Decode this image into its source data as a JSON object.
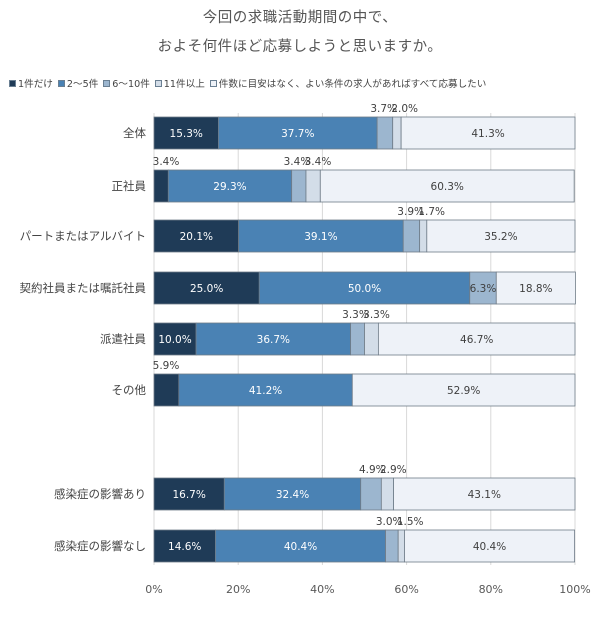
{
  "title_line1": "今回の求職活動期間の中で、",
  "title_line2": "およそ何件ほど応募しようと思いますか。",
  "chart_data": {
    "type": "bar",
    "orientation": "horizontal",
    "stacked": true,
    "normalized_percent": true,
    "categories": [
      "全体",
      "正社員",
      "パートまたはアルバイト",
      "契約社員または嘱託社員",
      "派遣社員",
      "その他",
      "感染症の影響あり",
      "感染症の影響なし"
    ],
    "series": [
      {
        "name": "1件だけ",
        "color": "#1f3b57",
        "values": [
          15.3,
          3.4,
          20.1,
          25.0,
          10.0,
          5.9,
          16.7,
          14.6
        ]
      },
      {
        "name": "2～5件",
        "color": "#4a82b4",
        "values": [
          37.7,
          29.3,
          39.1,
          50.0,
          36.7,
          41.2,
          32.4,
          40.4
        ]
      },
      {
        "name": "6～10件",
        "color": "#9cb6cf",
        "values": [
          3.7,
          3.4,
          3.9,
          6.3,
          3.3,
          0,
          4.9,
          3.0
        ]
      },
      {
        "name": "11件以上",
        "color": "#d3dde8",
        "values": [
          2.0,
          3.4,
          1.7,
          0,
          3.3,
          0,
          2.9,
          1.5
        ]
      },
      {
        "name": "件数に目安はなく、よい条件の求人があればすべて応募したい",
        "color": "#eef2f8",
        "values": [
          41.3,
          60.3,
          35.2,
          18.8,
          46.7,
          52.9,
          43.1,
          40.4
        ]
      }
    ],
    "labels": [
      [
        "15.3%",
        "37.7%",
        "3.7%",
        "2.0%",
        "41.3%"
      ],
      [
        "3.4%",
        "29.3%",
        "3.4%",
        "3.4%",
        "60.3%"
      ],
      [
        "20.1%",
        "39.1%",
        "3.9%",
        "1.7%",
        "35.2%"
      ],
      [
        "25.0%",
        "50.0%",
        "6.3%",
        "",
        "18.8%"
      ],
      [
        "10.0%",
        "36.7%",
        "3.3%",
        "3.3%",
        "46.7%"
      ],
      [
        "5.9%",
        "41.2%",
        "",
        "",
        "52.9%"
      ],
      [
        "16.7%",
        "32.4%",
        "4.9%",
        "2.9%",
        "43.1%"
      ],
      [
        "14.6%",
        "40.4%",
        "3.0%",
        "1.5%",
        "40.4%"
      ]
    ],
    "xlim": [
      0,
      100
    ],
    "x_ticks": [
      "0%",
      "20%",
      "40%",
      "60%",
      "80%",
      "100%"
    ],
    "grid": true,
    "legend_position": "top"
  }
}
